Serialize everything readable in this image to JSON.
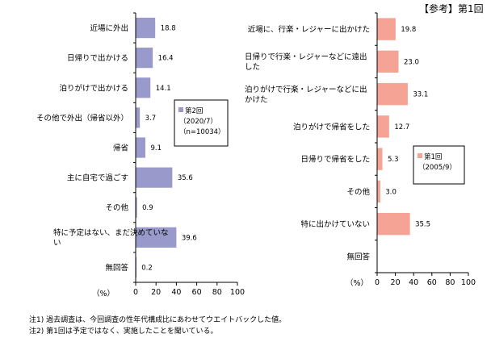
{
  "header_right": "【参考】第1回",
  "notes": [
    "注1) 過去調査は、今回調査の性年代構成比にあわせてウエイトバックした値。",
    "注2) 第1回は予定ではなく、実施したことを聞いている。"
  ],
  "chart_data": [
    {
      "type": "bar",
      "orientation": "horizontal",
      "categories": [
        "近場に外出",
        "日帰りで出かける",
        "泊りがけで出かける",
        "その他で外出（帰省以外）",
        "帰省",
        "主に自宅で過ごす",
        "その他",
        "特に予定はない、まだ決めていない",
        "無回答"
      ],
      "category_lines": [
        [
          "近場に外出"
        ],
        [
          "日帰りで出かける"
        ],
        [
          "泊りがけで出かける"
        ],
        [
          "その他で外出（帰省以外）"
        ],
        [
          "帰省"
        ],
        [
          "主に自宅で過ごす"
        ],
        [
          "その他"
        ],
        [
          "特に予定はない、まだ決めていな",
          "い"
        ],
        [
          "無回答"
        ]
      ],
      "series": [
        {
          "name": "第2回（2020/7）（n=10034）",
          "values": [
            18.8,
            16.4,
            14.1,
            3.7,
            9.1,
            35.6,
            0.9,
            39.6,
            0.2
          ],
          "color": "#9999cc"
        }
      ],
      "legend_lines": [
        "第2回",
        "（2020/7）",
        "（n=10034）"
      ],
      "xlim": [
        0,
        100
      ],
      "xticks": [
        "0",
        "20",
        "40",
        "60",
        "80",
        "100"
      ],
      "xlabel": "（%）",
      "grid": false,
      "legend_position": "right"
    },
    {
      "type": "bar",
      "orientation": "horizontal",
      "categories": [
        "近場に、行楽・レジャーに出かけた",
        "日帰りで行楽・レジャーなどに遠出した",
        "泊りがけで行楽・レジャーなどに出かけた",
        "泊りがけで帰省をした",
        "日帰りで帰省をした",
        "その他",
        "特に出かけていない",
        "無回答"
      ],
      "category_lines": [
        [
          "近場に、行楽・レジャーに出かけた"
        ],
        [
          "日帰りで行楽・レジャーなどに遠出",
          "した"
        ],
        [
          "泊りがけで行楽・レジャーなどに出",
          "かけた"
        ],
        [
          "泊りがけで帰省をした"
        ],
        [
          "日帰りで帰省をした"
        ],
        [
          "その他"
        ],
        [
          "特に出かけていない"
        ],
        [
          "無回答"
        ]
      ],
      "series": [
        {
          "name": "第1回（2005/9）",
          "values": [
            19.8,
            23.0,
            33.1,
            12.7,
            5.3,
            3.0,
            35.5,
            null
          ],
          "color": "#f4a394"
        }
      ],
      "legend_lines": [
        "第1回",
        "（2005/9）"
      ],
      "xlim": [
        0,
        100
      ],
      "xticks": [
        "0",
        "20",
        "40",
        "60",
        "80",
        "100"
      ],
      "xlabel": "（%）",
      "grid": false,
      "legend_position": "right"
    }
  ]
}
